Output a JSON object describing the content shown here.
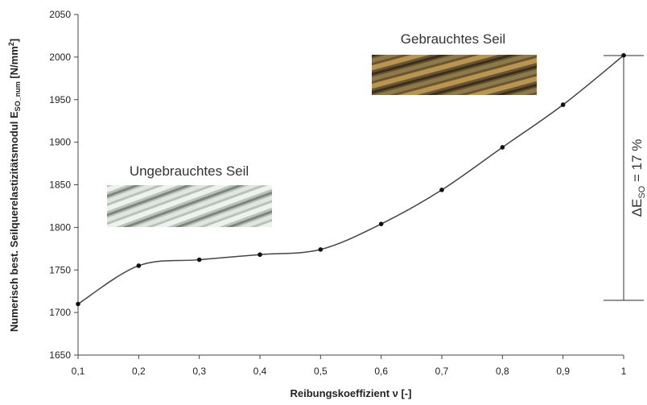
{
  "chart_data": {
    "type": "line",
    "x_label": "Reibungskoeffizient ν [-]",
    "y_label": [
      "Numerisch best. Seilquerelastizitätsmodul E",
      "SO_num",
      " [N/mm",
      "2",
      "]"
    ],
    "x": [
      0.1,
      0.2,
      0.3,
      0.4,
      0.5,
      0.6,
      0.7,
      0.8,
      0.9,
      1
    ],
    "series": [
      {
        "color": "#444444",
        "values": [
          1710,
          1755,
          1762,
          1768,
          1774,
          1804,
          1844,
          1894,
          1944,
          2002
        ]
      }
    ],
    "xlim": [
      0.1,
      1
    ],
    "xticks": [
      {
        "value": 0.1,
        "label": "0,1"
      },
      {
        "value": 0.2,
        "label": "0,2"
      },
      {
        "value": 0.3,
        "label": "0,3"
      },
      {
        "value": 0.4,
        "label": "0,4"
      },
      {
        "value": 0.5,
        "label": "0,5"
      },
      {
        "value": 0.6,
        "label": "0,6"
      },
      {
        "value": 0.7,
        "label": "0,7"
      },
      {
        "value": 0.8,
        "label": "0,8"
      },
      {
        "value": 0.9,
        "label": "0,9"
      },
      1
    ],
    "ylim": [
      1650,
      2050
    ],
    "yticks": [
      1650,
      1700,
      1750,
      1800,
      1850,
      1900,
      1950,
      2000,
      2050
    ],
    "grid": false,
    "annotations": {
      "unused": "Ungebrauchtes Seil",
      "used": "Gebrauchtes Seil",
      "delta": [
        "ΔE",
        "SO",
        " = 17 %"
      ]
    }
  }
}
